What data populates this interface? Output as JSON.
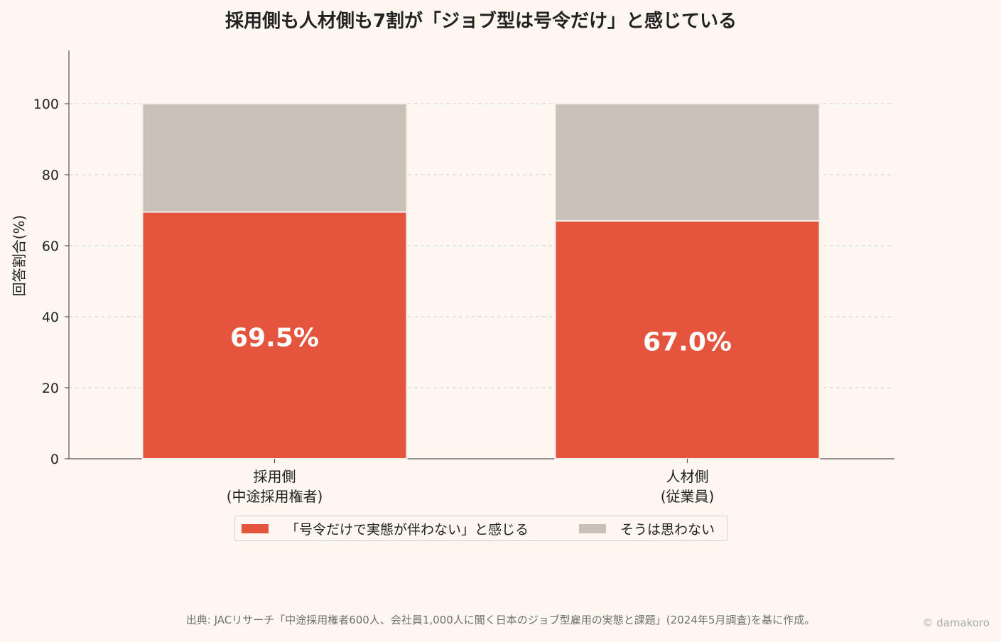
{
  "chart_data": {
    "type": "bar",
    "stacked": true,
    "title": "採用側も人材側も7割が「ジョブ型は号令だけ」と感じている",
    "ylabel": "回答割合(%)",
    "xlabel": "",
    "ylim": [
      0,
      115
    ],
    "yticks": [
      0,
      20,
      40,
      60,
      80,
      100
    ],
    "grid": true,
    "categories": [
      [
        "採用側",
        "(中途採用権者)"
      ],
      [
        "人材側",
        "(従業員)"
      ]
    ],
    "series": [
      {
        "name": "「号令だけで実態が伴わない」と感じる",
        "values": [
          69.5,
          67.0
        ],
        "color": "#e5553d",
        "labels": [
          "69.5%",
          "67.0%"
        ]
      },
      {
        "name": "そうは思わない",
        "values": [
          30.5,
          33.0
        ],
        "color": "#c9c1b7"
      }
    ],
    "legend_position": "bottom-center"
  },
  "footer": {
    "source": "出典: JACリサーチ「中途採用権者600人、会社員1,000人に聞く日本のジョブ型雇用の実態と課題」(2024年5月調査)を基に作成。",
    "credit": "© damakoro"
  }
}
